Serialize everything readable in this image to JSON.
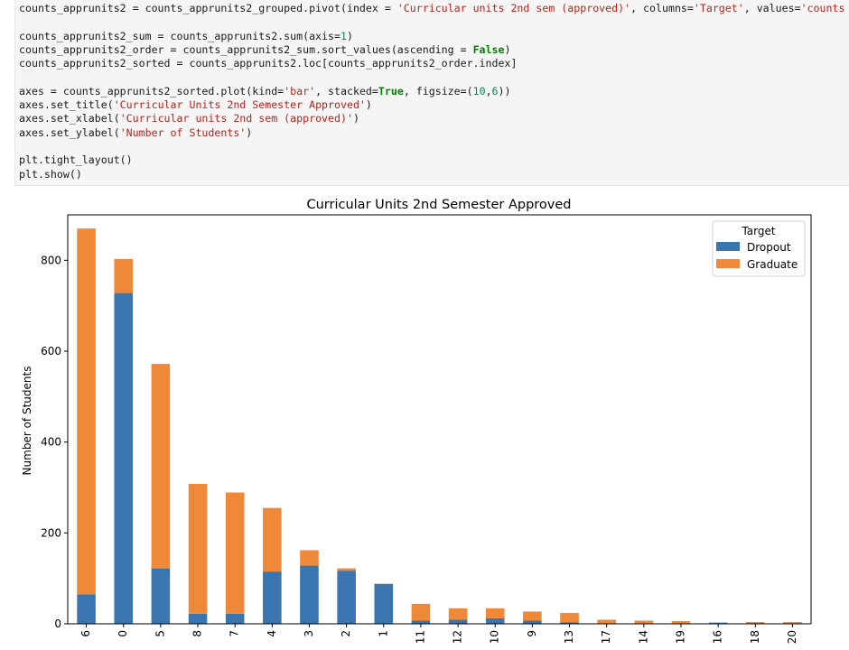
{
  "code": {
    "lines": [
      [
        {
          "t": "counts_apprunits2 = counts_apprunits2_grouped.pivot(index = "
        },
        {
          "t": "'Curricular units 2nd sem (approved)'",
          "c": "str"
        },
        {
          "t": ", columns="
        },
        {
          "t": "'Target'",
          "c": "str"
        },
        {
          "t": ", values="
        },
        {
          "t": "'counts",
          "c": "str"
        }
      ],
      [],
      [
        {
          "t": "counts_apprunits2_sum = counts_apprunits2.sum(axis="
        },
        {
          "t": "1",
          "c": "num"
        },
        {
          "t": ")"
        }
      ],
      [
        {
          "t": "counts_apprunits2_order = counts_apprunits2_sum.sort_values(ascending = "
        },
        {
          "t": "False",
          "c": "kw"
        },
        {
          "t": ")"
        }
      ],
      [
        {
          "t": "counts_apprunits2_sorted = counts_apprunits2.loc[counts_apprunits2_order.index]"
        }
      ],
      [],
      [
        {
          "t": "axes = counts_apprunits2_sorted.plot(kind="
        },
        {
          "t": "'bar'",
          "c": "str"
        },
        {
          "t": ", stacked="
        },
        {
          "t": "True",
          "c": "kw"
        },
        {
          "t": ", figsize=("
        },
        {
          "t": "10",
          "c": "num"
        },
        {
          "t": ","
        },
        {
          "t": "6",
          "c": "num"
        },
        {
          "t": "))"
        }
      ],
      [
        {
          "t": "axes.set_title("
        },
        {
          "t": "'Curricular Units 2nd Semester Approved'",
          "c": "str"
        },
        {
          "t": ")"
        }
      ],
      [
        {
          "t": "axes.set_xlabel("
        },
        {
          "t": "'Curricular units 2nd sem (approved)'",
          "c": "str"
        },
        {
          "t": ")"
        }
      ],
      [
        {
          "t": "axes.set_ylabel("
        },
        {
          "t": "'Number of Students'",
          "c": "str"
        },
        {
          "t": ")"
        }
      ],
      [],
      [
        {
          "t": "plt.tight_layout()"
        }
      ],
      [
        {
          "t": "plt.show()"
        }
      ]
    ]
  },
  "chart_data": {
    "type": "bar",
    "stacked": true,
    "title": "Curricular Units 2nd Semester Approved",
    "xlabel": "",
    "ylabel": "Number of Students",
    "categories": [
      "6",
      "0",
      "5",
      "8",
      "7",
      "4",
      "3",
      "2",
      "1",
      "11",
      "12",
      "10",
      "9",
      "13",
      "17",
      "14",
      "19",
      "16",
      "18",
      "20"
    ],
    "series": [
      {
        "name": "Dropout",
        "color": "#3a75b0",
        "values": [
          65,
          728,
          122,
          22,
          22,
          115,
          128,
          117,
          88,
          7,
          9,
          12,
          7,
          3,
          1,
          1,
          1,
          2,
          1,
          1
        ]
      },
      {
        "name": "Graduate",
        "color": "#f0883a",
        "values": [
          805,
          75,
          450,
          286,
          267,
          140,
          34,
          5,
          0,
          37,
          25,
          22,
          20,
          21,
          8,
          6,
          5,
          1,
          3,
          3
        ]
      }
    ],
    "ylim": [
      0,
      900
    ],
    "yticks": [
      0,
      200,
      400,
      600,
      800
    ],
    "grid": false,
    "legend": {
      "title": "Target",
      "placement": "top-right"
    }
  }
}
